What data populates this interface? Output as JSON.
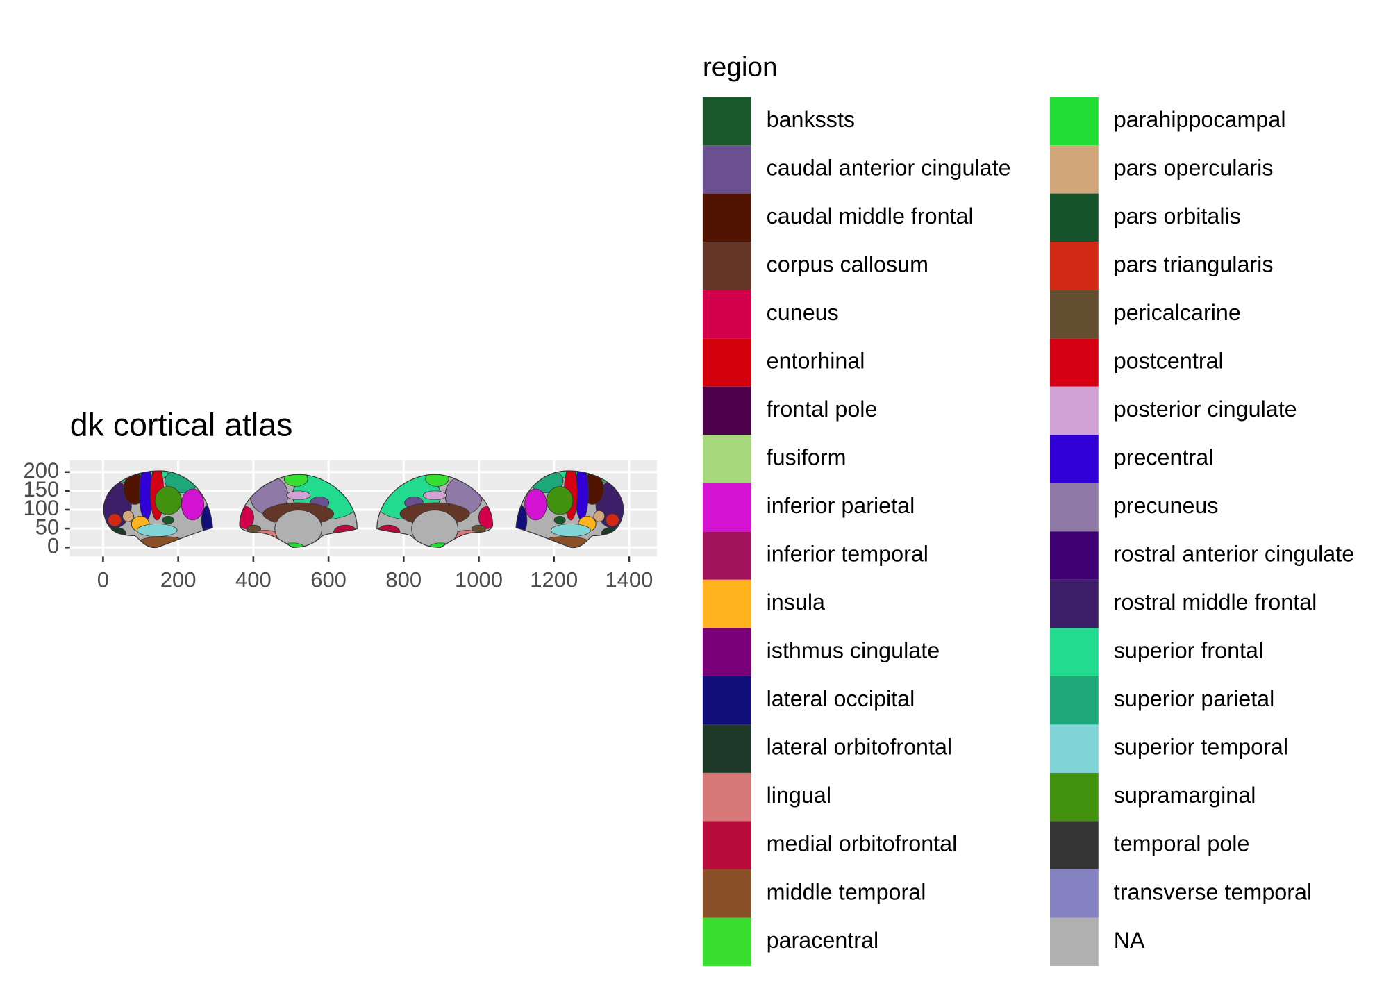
{
  "chart_data": {
    "type": "atlas",
    "title": "dk cortical atlas",
    "xlim": [
      -88,
      1474
    ],
    "xticks": [
      0,
      200,
      400,
      600,
      800,
      1000,
      1200,
      1400
    ],
    "ylim": [
      -24,
      231
    ],
    "yticks": [
      0,
      50,
      100,
      150,
      200
    ],
    "grid": true,
    "legend_position": "right",
    "legend_title": "region",
    "regions": [
      {
        "name": "bankssts",
        "color": "#19582a"
      },
      {
        "name": "caudal anterior cingulate",
        "color": "#6a5090"
      },
      {
        "name": "caudal middle frontal",
        "color": "#501400"
      },
      {
        "name": "corpus callosum",
        "color": "#643628"
      },
      {
        "name": "cuneus",
        "color": "#d2004b"
      },
      {
        "name": "entorhinal",
        "color": "#d2000a"
      },
      {
        "name": "frontal pole",
        "color": "#4f004b"
      },
      {
        "name": "fusiform",
        "color": "#a8d87c"
      },
      {
        "name": "inferior parietal",
        "color": "#d214d2"
      },
      {
        "name": "inferior temporal",
        "color": "#a2135e"
      },
      {
        "name": "insula",
        "color": "#ffb31f"
      },
      {
        "name": "isthmus cingulate",
        "color": "#790078"
      },
      {
        "name": "lateral occipital",
        "color": "#130f7a"
      },
      {
        "name": "lateral orbitofrontal",
        "color": "#1f3929"
      },
      {
        "name": "lingual",
        "color": "#d77878"
      },
      {
        "name": "medial orbitofrontal",
        "color": "#b90b3b"
      },
      {
        "name": "middle temporal",
        "color": "#8a5027"
      },
      {
        "name": "paracentral",
        "color": "#3ade31"
      },
      {
        "name": "parahippocampal",
        "color": "#22de34"
      },
      {
        "name": "pars opercularis",
        "color": "#d1a67a"
      },
      {
        "name": "pars orbitalis",
        "color": "#14532a"
      },
      {
        "name": "pars triangularis",
        "color": "#d22914"
      },
      {
        "name": "pericalcarine",
        "color": "#634f2f"
      },
      {
        "name": "postcentral",
        "color": "#d50013"
      },
      {
        "name": "posterior cingulate",
        "color": "#d3a2d4"
      },
      {
        "name": "precentral",
        "color": "#3000d6"
      },
      {
        "name": "precuneus",
        "color": "#8f79a6"
      },
      {
        "name": "rostral anterior cingulate",
        "color": "#3f0076"
      },
      {
        "name": "rostral middle frontal",
        "color": "#3d1f69"
      },
      {
        "name": "superior frontal",
        "color": "#22db8f"
      },
      {
        "name": "superior parietal",
        "color": "#1ea87a"
      },
      {
        "name": "superior temporal",
        "color": "#81d4d6"
      },
      {
        "name": "supramarginal",
        "color": "#43920f"
      },
      {
        "name": "temporal pole",
        "color": "#353535"
      },
      {
        "name": "transverse temporal",
        "color": "#8482c0"
      },
      {
        "name": "NA",
        "color": "#b0b0b0"
      }
    ]
  }
}
